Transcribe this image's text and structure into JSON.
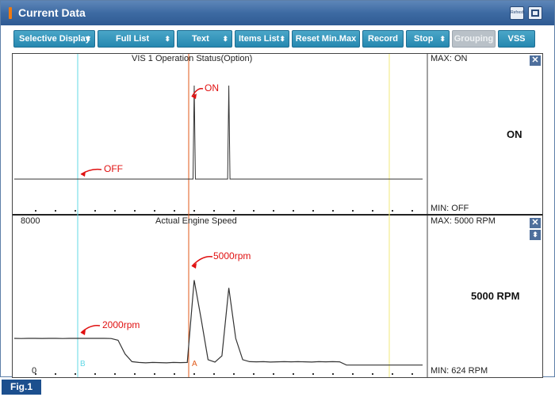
{
  "window": {
    "title": "Current Data",
    "refresh_button_label": "Refresh"
  },
  "toolbar": {
    "buttons": [
      {
        "label": "Selective Display",
        "has_dropdown": true
      },
      {
        "label": "Full List",
        "has_dropdown": true
      },
      {
        "label": "Text",
        "has_dropdown": true
      },
      {
        "label": "Items List",
        "has_dropdown": true
      },
      {
        "label": "Reset Min.Max",
        "has_dropdown": false
      },
      {
        "label": "Record",
        "has_dropdown": false
      },
      {
        "label": "Stop",
        "has_dropdown": true
      },
      {
        "label": "Grouping",
        "has_dropdown": false,
        "disabled": true
      },
      {
        "label": "VSS",
        "has_dropdown": false
      }
    ],
    "dropdown_glyph": "⬍"
  },
  "panels": [
    {
      "title": "VIS 1 Operation Status(Option)",
      "max_label": "MAX: ON",
      "min_label": "MIN: OFF",
      "current_value": "ON",
      "y_top_label": "",
      "y_bottom_label": "",
      "annotations": [
        {
          "text": "ON"
        },
        {
          "text": "OFF"
        }
      ],
      "signal_levels": {
        "low": "OFF",
        "high": "ON"
      },
      "samples": [
        0,
        0,
        0,
        0,
        0,
        0,
        0,
        0,
        0,
        0,
        0,
        0,
        0,
        0,
        0,
        0,
        0,
        0,
        0,
        0,
        0,
        0,
        0,
        0,
        0,
        0,
        1,
        0,
        0,
        0,
        0,
        1,
        0,
        0,
        0,
        0,
        0,
        0,
        0,
        0,
        0,
        0,
        0,
        0,
        0,
        0,
        0,
        0,
        0,
        0,
        0,
        0,
        0,
        0,
        0,
        0,
        0,
        0,
        0,
        0
      ]
    },
    {
      "title": "Actual Engine Speed",
      "max_label": "MAX:  5000 RPM",
      "min_label": "MIN:   624 RPM",
      "current_value": "5000 RPM",
      "y_top_label": "8000",
      "y_bottom_label": "0",
      "annotations": [
        {
          "text": "5000rpm"
        },
        {
          "text": "2000rpm"
        }
      ],
      "y_range": [
        0,
        8000
      ],
      "samples_rpm": [
        2000,
        1990,
        2000,
        2000,
        1995,
        2000,
        2000,
        1990,
        2000,
        2000,
        2000,
        2000,
        2000,
        2000,
        1990,
        1900,
        1200,
        800,
        760,
        740,
        760,
        750,
        740,
        760,
        750,
        760,
        5000,
        3000,
        900,
        780,
        1100,
        4600,
        2000,
        900,
        800,
        790,
        800,
        780,
        790,
        800,
        790,
        800,
        790,
        780,
        800,
        790,
        800,
        790,
        624,
        624,
        624,
        624,
        624,
        624,
        624,
        624,
        624,
        624,
        624,
        624
      ]
    }
  ],
  "cursors": {
    "a_label": "A",
    "b_label": "B",
    "a_color": "#e05a1a",
    "b_color": "#62d8e6",
    "end_color": "#f0ea78"
  },
  "figure_label": "Fig.1",
  "colors": {
    "title_bar": "#3d6aa2",
    "toolbar_button": "#2a8cb4",
    "annotation": "#e01010",
    "close_button": "#4e6f9c"
  }
}
